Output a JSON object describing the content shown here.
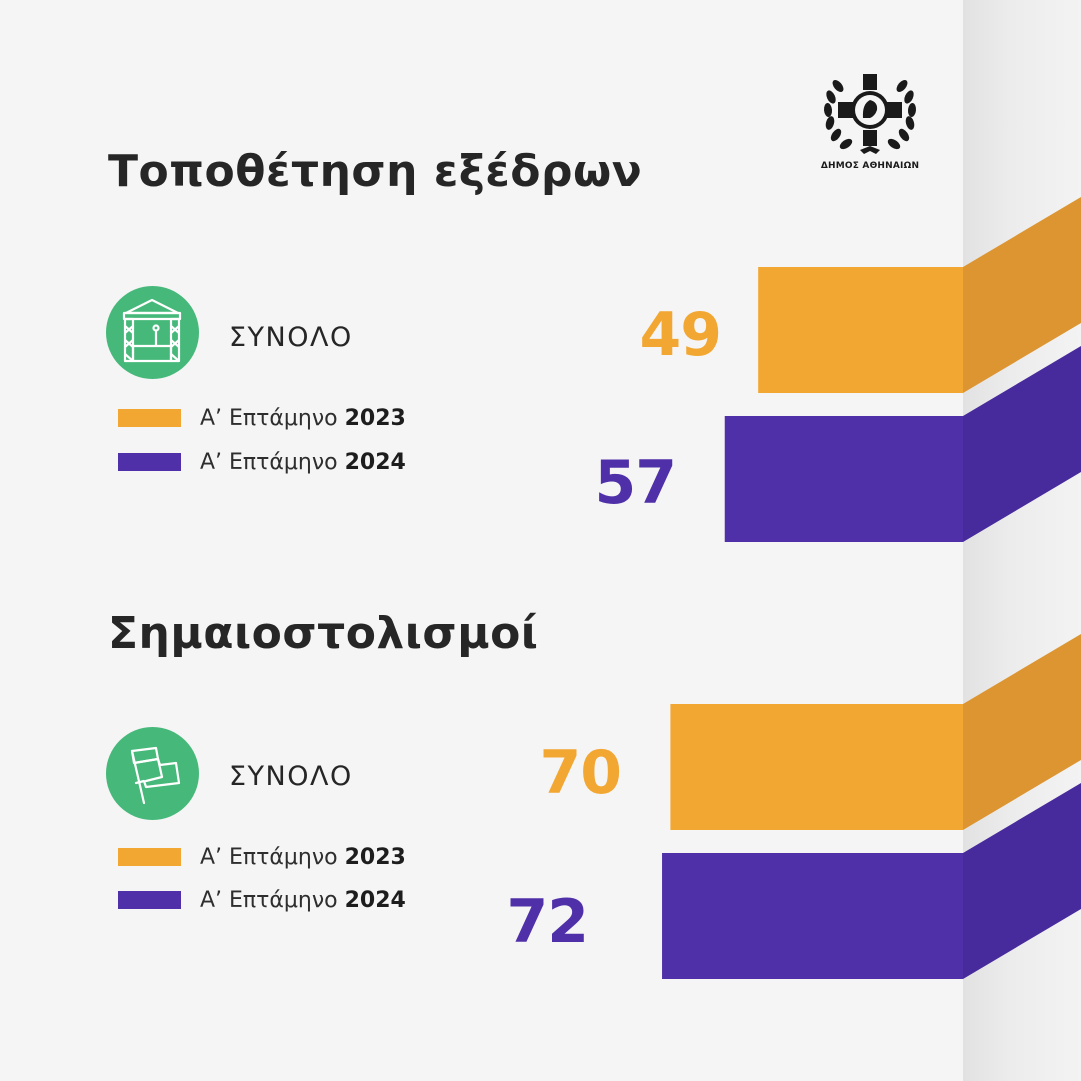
{
  "logo": {
    "text": "ΔΗΜΟΣ ΑΘΗΝΑΙΩΝ",
    "icon": "athens-municipality-seal"
  },
  "colors": {
    "series_2023": "#f2a733",
    "series_2024": "#4f30a8",
    "icon_bg": "#46b87a"
  },
  "chart_data": [
    {
      "type": "bar",
      "title": "Τοποθέτηση εξέδρων",
      "icon": "stage-icon",
      "total_label": "ΣΥΝΟΛΟ",
      "categories": [
        "ΣΥΝΟΛΟ"
      ],
      "series": [
        {
          "name": "Α’ Επτάμηνο",
          "year": "2023",
          "values": [
            49
          ]
        },
        {
          "name": "Α’ Επτάμηνο",
          "year": "2024",
          "values": [
            57
          ]
        }
      ]
    },
    {
      "type": "bar",
      "title": "Σημαιοστολισμοί",
      "icon": "flag-icon",
      "total_label": "ΣΥΝΟΛΟ",
      "categories": [
        "ΣΥΝΟΛΟ"
      ],
      "series": [
        {
          "name": "Α’ Επτάμηνο",
          "year": "2023",
          "values": [
            70
          ]
        },
        {
          "name": "Α’ Επτάμηνο",
          "year": "2024",
          "values": [
            72
          ]
        }
      ]
    }
  ]
}
